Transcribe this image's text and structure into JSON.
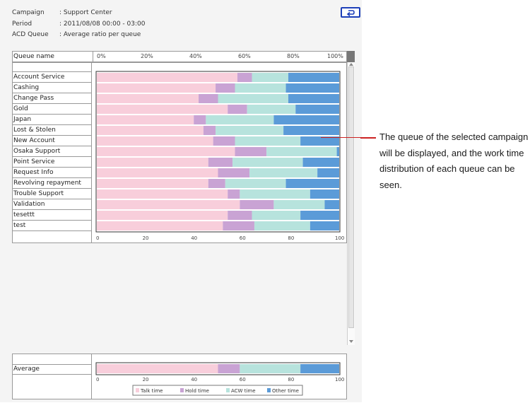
{
  "info": {
    "campaign_label": "Campaign",
    "campaign_value": ": Support Center",
    "period_label": "Period",
    "period_value": ": 2011/08/08   00:00 - 03:00",
    "acd_label": "ACD Queue",
    "acd_value": ": Average ratio per queue"
  },
  "table": {
    "queue_header": "Queue name",
    "pct_ticks": [
      "0%",
      "20%",
      "40%",
      "60%",
      "80%",
      "100%"
    ],
    "axis_ticks": [
      "0",
      "20",
      "40",
      "60",
      "80",
      "100"
    ],
    "average_label": "Average"
  },
  "colors": {
    "talk": "#f8cedb",
    "hold": "#c9a3d4",
    "acw": "#b7e3dd",
    "other": "#5b9bd8"
  },
  "chart_data": {
    "type": "bar",
    "stacked": true,
    "orientation": "horizontal",
    "xlim": [
      0,
      100
    ],
    "categories": [
      "Account Service",
      "Cashing",
      "Change Pass",
      "Gold",
      "Japan",
      "Lost & Stolen",
      "New Account",
      "Osaka Support",
      "Point Service",
      "Request Info",
      "Revolving repayment",
      "Trouble Support",
      "Validation",
      "tesettt",
      "test"
    ],
    "series": [
      {
        "name": "Talk time",
        "values": [
          58,
          49,
          42,
          54,
          40,
          44,
          48,
          57,
          46,
          50,
          46,
          54,
          59,
          54,
          52
        ]
      },
      {
        "name": "Hold time",
        "values": [
          6,
          8,
          8,
          8,
          5,
          5,
          9,
          13,
          10,
          13,
          7,
          5,
          14,
          10,
          13
        ]
      },
      {
        "name": "ACW time",
        "values": [
          15,
          21,
          29,
          20,
          28,
          28,
          27,
          29,
          29,
          28,
          25,
          29,
          21,
          20,
          23
        ]
      },
      {
        "name": "Other time",
        "values": [
          21,
          22,
          21,
          18,
          27,
          23,
          16,
          1,
          15,
          9,
          22,
          12,
          6,
          16,
          12
        ]
      }
    ],
    "average": {
      "values": [
        50,
        9,
        25,
        16
      ]
    },
    "legend": "bottom"
  },
  "callout": {
    "text": "The queue of the selected campaign will be displayed, and the work time distribution of each queue can be seen."
  }
}
